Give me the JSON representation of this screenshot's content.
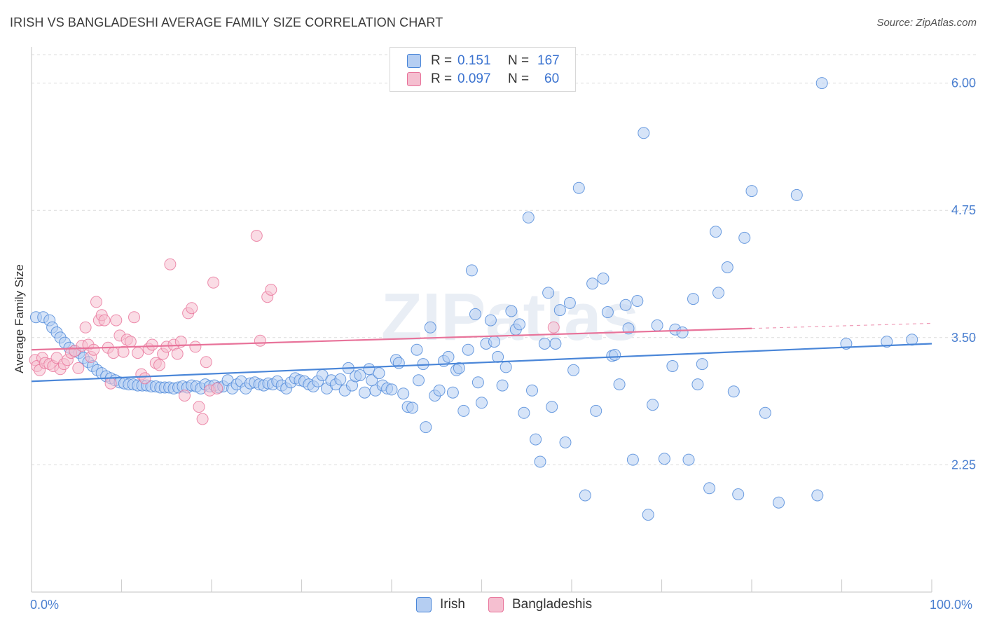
{
  "title": "IRISH VS BANGLADESHI AVERAGE FAMILY SIZE CORRELATION CHART",
  "source": "Source: ZipAtlas.com",
  "watermark": "ZIPatlas",
  "legend": {
    "irish": {
      "r_label": "R =",
      "r_value": "0.151",
      "n_label": "N =",
      "n_value": "167"
    },
    "bangladeshi": {
      "r_label": "R =",
      "r_value": "0.097",
      "n_label": "N =",
      "n_value": "60"
    }
  },
  "bottom_legend": {
    "irish": "Irish",
    "bangladeshi": "Bangladeshis"
  },
  "x_tick_labels": {
    "left": "0.0%",
    "right": "100.0%"
  },
  "colors": {
    "irish": "#4a86d8",
    "irish_fill": "#b5cef2",
    "bangladeshi": "#e8739a",
    "bangladeshi_fill": "#f5bfd0",
    "axis_label": "#4a7fd0",
    "grid": "#dddddd"
  },
  "chart_data": {
    "type": "scatter",
    "title": "IRISH VS BANGLADESHI AVERAGE FAMILY SIZE CORRELATION CHART",
    "xlabel": "",
    "ylabel": "Average Family Size",
    "xlim": [
      0,
      100
    ],
    "ylim": [
      1.0,
      6.3
    ],
    "y_ticks": [
      2.25,
      3.5,
      4.75,
      6.0
    ],
    "y_tick_labels": [
      "2.25",
      "3.50",
      "4.75",
      "6.00"
    ],
    "x_tick_labels": [
      "0.0%",
      "100.0%"
    ],
    "grid": "horizontal dashed",
    "legend_position": "top-center",
    "series": [
      {
        "name": "Irish",
        "color": "#4a86d8",
        "trend": {
          "x": [
            0,
            100
          ],
          "y": [
            3.07,
            3.44
          ],
          "style": "solid"
        },
        "points": [
          [
            0.5,
            3.7
          ],
          [
            1.3,
            3.7
          ],
          [
            2,
            3.67
          ],
          [
            2.3,
            3.6
          ],
          [
            2.8,
            3.55
          ],
          [
            3.2,
            3.5
          ],
          [
            3.7,
            3.45
          ],
          [
            4.2,
            3.4
          ],
          [
            4.8,
            3.37
          ],
          [
            5.3,
            3.35
          ],
          [
            5.8,
            3.3
          ],
          [
            6.3,
            3.26
          ],
          [
            6.8,
            3.22
          ],
          [
            7.3,
            3.18
          ],
          [
            7.8,
            3.15
          ],
          [
            8.3,
            3.12
          ],
          [
            8.8,
            3.1
          ],
          [
            9.3,
            3.08
          ],
          [
            9.8,
            3.06
          ],
          [
            10.3,
            3.05
          ],
          [
            10.8,
            3.04
          ],
          [
            11.3,
            3.04
          ],
          [
            11.8,
            3.03
          ],
          [
            12.3,
            3.03
          ],
          [
            12.8,
            3.03
          ],
          [
            13.3,
            3.02
          ],
          [
            13.8,
            3.02
          ],
          [
            14.3,
            3.01
          ],
          [
            14.8,
            3.01
          ],
          [
            15.3,
            3.01
          ],
          [
            15.8,
            3.0
          ],
          [
            16.3,
            3.01
          ],
          [
            16.8,
            3.02
          ],
          [
            17.3,
            3.01
          ],
          [
            17.8,
            3.03
          ],
          [
            18.3,
            3.02
          ],
          [
            18.8,
            3.0
          ],
          [
            19.3,
            3.04
          ],
          [
            19.8,
            3.02
          ],
          [
            20.3,
            3.03
          ],
          [
            20.8,
            3.01
          ],
          [
            21.3,
            3.02
          ],
          [
            21.8,
            3.08
          ],
          [
            22.3,
            3.0
          ],
          [
            22.8,
            3.04
          ],
          [
            23.3,
            3.07
          ],
          [
            23.8,
            3.0
          ],
          [
            24.3,
            3.05
          ],
          [
            24.8,
            3.06
          ],
          [
            25.3,
            3.04
          ],
          [
            25.8,
            3.03
          ],
          [
            26.3,
            3.05
          ],
          [
            26.8,
            3.04
          ],
          [
            27.3,
            3.07
          ],
          [
            27.8,
            3.03
          ],
          [
            28.3,
            3.0
          ],
          [
            28.8,
            3.06
          ],
          [
            29.3,
            3.1
          ],
          [
            29.8,
            3.08
          ],
          [
            30.3,
            3.07
          ],
          [
            30.8,
            3.04
          ],
          [
            31.3,
            3.02
          ],
          [
            31.8,
            3.07
          ],
          [
            32.3,
            3.13
          ],
          [
            32.8,
            3.0
          ],
          [
            33.3,
            3.08
          ],
          [
            33.8,
            3.04
          ],
          [
            34.3,
            3.09
          ],
          [
            34.8,
            2.98
          ],
          [
            35.2,
            3.2
          ],
          [
            35.6,
            3.03
          ],
          [
            36.0,
            3.12
          ],
          [
            36.5,
            3.13
          ],
          [
            37.0,
            2.96
          ],
          [
            37.5,
            3.19
          ],
          [
            37.8,
            3.08
          ],
          [
            38.2,
            2.98
          ],
          [
            38.6,
            3.15
          ],
          [
            39.0,
            3.03
          ],
          [
            39.5,
            3.0
          ],
          [
            40.0,
            2.99
          ],
          [
            40.5,
            3.28
          ],
          [
            40.8,
            3.25
          ],
          [
            41.3,
            2.95
          ],
          [
            41.8,
            2.82
          ],
          [
            42.3,
            2.81
          ],
          [
            42.8,
            3.38
          ],
          [
            43.0,
            3.08
          ],
          [
            43.5,
            3.24
          ],
          [
            43.8,
            2.62
          ],
          [
            44.3,
            3.6
          ],
          [
            44.8,
            2.93
          ],
          [
            45.3,
            2.98
          ],
          [
            45.8,
            3.27
          ],
          [
            46.3,
            3.31
          ],
          [
            46.8,
            2.96
          ],
          [
            47.2,
            3.18
          ],
          [
            47.5,
            3.2
          ],
          [
            48.0,
            2.78
          ],
          [
            48.5,
            3.38
          ],
          [
            48.9,
            4.16
          ],
          [
            49.3,
            3.73
          ],
          [
            49.6,
            3.06
          ],
          [
            50.0,
            2.86
          ],
          [
            50.5,
            3.44
          ],
          [
            51.0,
            3.67
          ],
          [
            51.4,
            3.46
          ],
          [
            51.8,
            3.31
          ],
          [
            52.3,
            3.03
          ],
          [
            52.7,
            3.21
          ],
          [
            53.3,
            3.76
          ],
          [
            53.8,
            3.58
          ],
          [
            54.2,
            3.63
          ],
          [
            54.7,
            2.76
          ],
          [
            55.2,
            4.68
          ],
          [
            55.6,
            2.98
          ],
          [
            56.0,
            2.5
          ],
          [
            56.5,
            2.28
          ],
          [
            57.0,
            3.44
          ],
          [
            57.4,
            3.94
          ],
          [
            57.8,
            2.82
          ],
          [
            58.2,
            3.44
          ],
          [
            58.7,
            3.77
          ],
          [
            59.3,
            2.47
          ],
          [
            59.8,
            3.84
          ],
          [
            60.2,
            3.18
          ],
          [
            60.8,
            4.97
          ],
          [
            61.5,
            1.95
          ],
          [
            62.3,
            4.03
          ],
          [
            62.7,
            2.78
          ],
          [
            63.5,
            4.08
          ],
          [
            64.0,
            3.75
          ],
          [
            64.5,
            3.32
          ],
          [
            64.8,
            3.33
          ],
          [
            65.3,
            3.04
          ],
          [
            66.0,
            3.82
          ],
          [
            66.3,
            3.59
          ],
          [
            66.8,
            2.3
          ],
          [
            67.3,
            3.86
          ],
          [
            68.0,
            5.51
          ],
          [
            68.5,
            1.76
          ],
          [
            69.0,
            2.84
          ],
          [
            69.5,
            3.62
          ],
          [
            70.3,
            2.31
          ],
          [
            71.2,
            3.22
          ],
          [
            71.5,
            3.58
          ],
          [
            72.3,
            3.55
          ],
          [
            73.0,
            2.3
          ],
          [
            73.5,
            3.88
          ],
          [
            74.0,
            3.04
          ],
          [
            74.5,
            3.24
          ],
          [
            75.3,
            2.02
          ],
          [
            76.0,
            4.54
          ],
          [
            76.3,
            3.94
          ],
          [
            77.3,
            4.19
          ],
          [
            78.0,
            2.97
          ],
          [
            78.5,
            1.96
          ],
          [
            79.2,
            4.48
          ],
          [
            80.0,
            4.94
          ],
          [
            81.5,
            2.76
          ],
          [
            83.0,
            1.88
          ],
          [
            85.0,
            4.9
          ],
          [
            87.3,
            1.95
          ],
          [
            87.8,
            6.0
          ],
          [
            90.5,
            3.44
          ],
          [
            95.0,
            3.46
          ],
          [
            97.8,
            3.48
          ]
        ]
      },
      {
        "name": "Bangladeshis",
        "color": "#e8739a",
        "trend": {
          "x": [
            0,
            80
          ],
          "y": [
            3.38,
            3.59
          ],
          "style": "solid",
          "extension": {
            "x": [
              80,
              100
            ],
            "y": [
              3.59,
              3.64
            ],
            "style": "dashed"
          }
        },
        "points": [
          [
            0.4,
            3.28
          ],
          [
            0.6,
            3.22
          ],
          [
            0.9,
            3.18
          ],
          [
            1.2,
            3.3
          ],
          [
            1.5,
            3.25
          ],
          [
            2.0,
            3.24
          ],
          [
            2.4,
            3.22
          ],
          [
            2.8,
            3.3
          ],
          [
            3.2,
            3.19
          ],
          [
            3.6,
            3.24
          ],
          [
            4.0,
            3.28
          ],
          [
            4.4,
            3.35
          ],
          [
            4.8,
            3.37
          ],
          [
            5.2,
            3.2
          ],
          [
            5.6,
            3.42
          ],
          [
            6.0,
            3.6
          ],
          [
            6.3,
            3.43
          ],
          [
            6.6,
            3.31
          ],
          [
            6.9,
            3.38
          ],
          [
            7.2,
            3.85
          ],
          [
            7.5,
            3.67
          ],
          [
            7.8,
            3.72
          ],
          [
            8.1,
            3.67
          ],
          [
            8.5,
            3.4
          ],
          [
            8.8,
            3.05
          ],
          [
            9.1,
            3.35
          ],
          [
            9.4,
            3.67
          ],
          [
            9.8,
            3.52
          ],
          [
            10.2,
            3.36
          ],
          [
            10.6,
            3.48
          ],
          [
            11.0,
            3.46
          ],
          [
            11.4,
            3.7
          ],
          [
            11.8,
            3.35
          ],
          [
            12.2,
            3.14
          ],
          [
            12.6,
            3.1
          ],
          [
            13.0,
            3.39
          ],
          [
            13.4,
            3.43
          ],
          [
            13.8,
            3.25
          ],
          [
            14.2,
            3.23
          ],
          [
            14.6,
            3.34
          ],
          [
            15.0,
            3.41
          ],
          [
            15.4,
            4.22
          ],
          [
            15.8,
            3.43
          ],
          [
            16.2,
            3.34
          ],
          [
            16.6,
            3.46
          ],
          [
            17.0,
            2.93
          ],
          [
            17.4,
            3.74
          ],
          [
            17.8,
            3.79
          ],
          [
            18.2,
            3.41
          ],
          [
            18.6,
            2.82
          ],
          [
            19.0,
            2.7
          ],
          [
            19.4,
            3.26
          ],
          [
            19.8,
            2.98
          ],
          [
            20.2,
            4.04
          ],
          [
            20.6,
            3.0
          ],
          [
            25.0,
            4.5
          ],
          [
            25.4,
            3.47
          ],
          [
            26.2,
            3.9
          ],
          [
            26.6,
            3.97
          ],
          [
            58.0,
            3.6
          ]
        ]
      }
    ]
  }
}
